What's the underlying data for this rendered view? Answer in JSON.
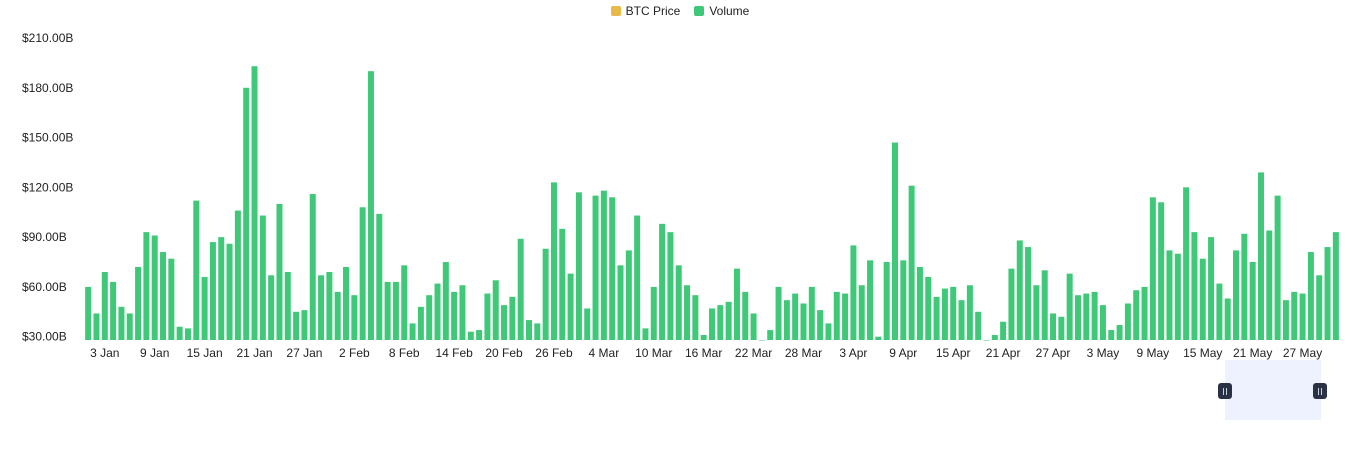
{
  "legend": {
    "items": [
      {
        "label": "BTC Price",
        "color": "#e9b949"
      },
      {
        "label": "Volume",
        "color": "#3ec878"
      }
    ]
  },
  "chart_data": {
    "type": "bar",
    "title": "",
    "xlabel": "",
    "ylabel": "",
    "bar_color": "#3ec878",
    "y_ticks": [
      "$30.00B",
      "$60.00B",
      "$90.00B",
      "$120.00B",
      "$150.00B",
      "$180.00B",
      "$210.00B"
    ],
    "y_tick_values": [
      30,
      60,
      90,
      120,
      150,
      180,
      210
    ],
    "ylim": [
      28,
      210
    ],
    "x_tick_labels": [
      "3 Jan",
      "9 Jan",
      "15 Jan",
      "21 Jan",
      "27 Jan",
      "2 Feb",
      "8 Feb",
      "14 Feb",
      "20 Feb",
      "26 Feb",
      "4 Mar",
      "10 Mar",
      "16 Mar",
      "22 Mar",
      "28 Mar",
      "3 Apr",
      "9 Apr",
      "15 Apr",
      "21 Apr",
      "27 Apr",
      "3 May",
      "9 May",
      "15 May",
      "21 May",
      "27 May"
    ],
    "x_tick_indices": [
      2,
      8,
      14,
      20,
      26,
      32,
      38,
      44,
      50,
      56,
      62,
      68,
      74,
      80,
      86,
      92,
      98,
      104,
      110,
      116,
      122,
      128,
      134,
      140,
      146
    ],
    "values": [
      60,
      44,
      69,
      63,
      48,
      44,
      72,
      93,
      91,
      81,
      77,
      36,
      35,
      112,
      66,
      87,
      90,
      86,
      106,
      180,
      193,
      103,
      67,
      110,
      69,
      45,
      46,
      116,
      67,
      69,
      57,
      72,
      55,
      108,
      190,
      104,
      63,
      63,
      73,
      38,
      48,
      55,
      62,
      75,
      57,
      61,
      33,
      34,
      56,
      64,
      49,
      54,
      89,
      40,
      38,
      83,
      123,
      95,
      68,
      117,
      47,
      115,
      118,
      114,
      73,
      82,
      103,
      35,
      60,
      98,
      93,
      73,
      61,
      55,
      31,
      47,
      49,
      51,
      71,
      57,
      44,
      28,
      34,
      60,
      52,
      56,
      50,
      60,
      46,
      38,
      57,
      56,
      85,
      61,
      76,
      30,
      75,
      147,
      76,
      121,
      72,
      66,
      54,
      59,
      60,
      52,
      61,
      45,
      28,
      31,
      39,
      71,
      88,
      84,
      61,
      70,
      44,
      42,
      68,
      55,
      56,
      57,
      49,
      34,
      37,
      50,
      58,
      60,
      114,
      111,
      82,
      80,
      120,
      93,
      77,
      90,
      62,
      53,
      82,
      92,
      75,
      129,
      94,
      115,
      52,
      57,
      56,
      81,
      67,
      84,
      93
    ]
  },
  "navigator": {
    "window_start_fraction": 0.875,
    "window_end_fraction": 1.0
  }
}
